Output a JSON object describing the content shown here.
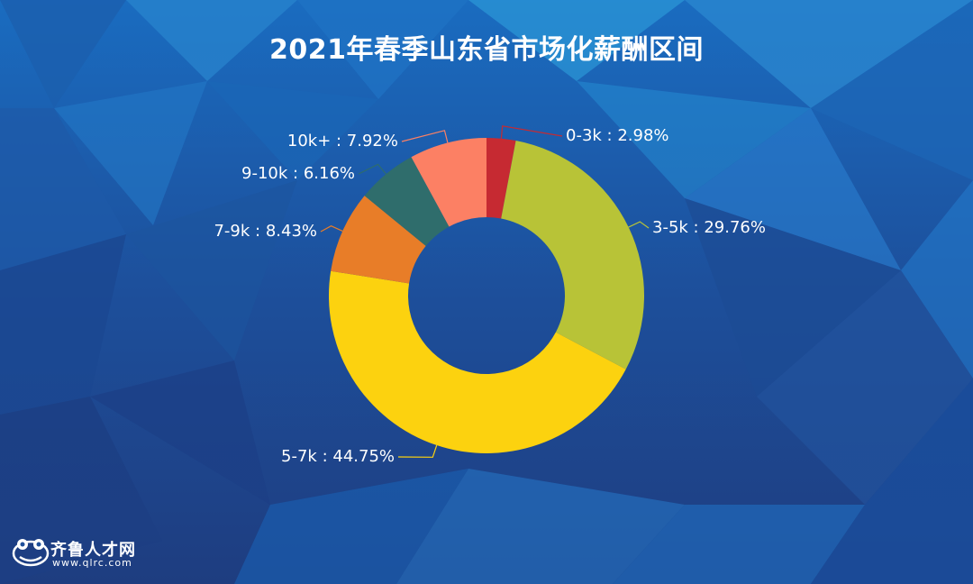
{
  "chart_data": {
    "type": "pie",
    "donut": true,
    "title": "2021年春季山东省市场化薪酬区间",
    "label_format": "{name} : {pct}",
    "slices": [
      {
        "name": "0-3k",
        "value": 2.98,
        "label": "2.98%",
        "color": "#c62a32"
      },
      {
        "name": "3-5k",
        "value": 29.76,
        "label": "29.76%",
        "color": "#b8c337"
      },
      {
        "name": "5-7k",
        "value": 44.75,
        "label": "44.75%",
        "color": "#fcd20f"
      },
      {
        "name": "7-9k",
        "value": 8.43,
        "label": "8.43%",
        "color": "#e87d28"
      },
      {
        "name": "9-10k",
        "value": 6.16,
        "label": "6.16%",
        "color": "#2f6d6c"
      },
      {
        "name": "10k+",
        "value": 7.92,
        "label": "7.92%",
        "color": "#fc8064"
      }
    ]
  },
  "logo": {
    "name": "齐鲁人才网",
    "url": "www.qlrc.com",
    "icon": "frog-icon"
  },
  "colors": {
    "background": "#1e4f9a",
    "text": "#ffffff"
  }
}
